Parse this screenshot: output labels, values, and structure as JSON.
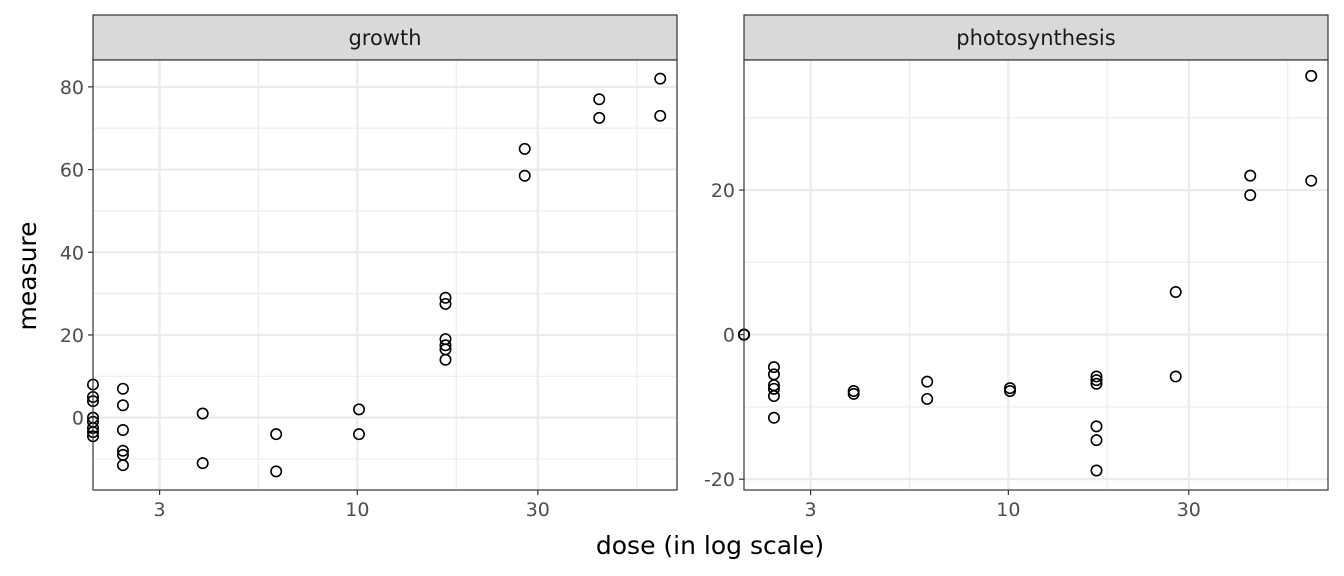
{
  "chart_data": {
    "type": "scatter",
    "xlabel": "dose (in log scale)",
    "ylabel": "measure",
    "x_scale": "log",
    "x_ticks": [
      3,
      10,
      30
    ],
    "x_tick_labels": [
      "3",
      "10",
      "30"
    ],
    "xlim": [
      2,
      70
    ],
    "facets": [
      {
        "name": "growth",
        "ylim": [
          -17.5,
          86.5
        ],
        "y_ticks": [
          0,
          20,
          40,
          60,
          80
        ],
        "y_tick_labels": [
          "0",
          "20",
          "40",
          "60",
          "80"
        ],
        "points": [
          {
            "x": 2,
            "y": 8
          },
          {
            "x": 2,
            "y": 5
          },
          {
            "x": 2,
            "y": 4
          },
          {
            "x": 2,
            "y": 0
          },
          {
            "x": 2,
            "y": -1
          },
          {
            "x": 2,
            "y": -2.5
          },
          {
            "x": 2,
            "y": -3.5
          },
          {
            "x": 2,
            "y": -4.5
          },
          {
            "x": 2.4,
            "y": 7
          },
          {
            "x": 2.4,
            "y": 3
          },
          {
            "x": 2.4,
            "y": -3
          },
          {
            "x": 2.4,
            "y": -8
          },
          {
            "x": 2.4,
            "y": -9
          },
          {
            "x": 2.4,
            "y": -11.5
          },
          {
            "x": 3.9,
            "y": 1
          },
          {
            "x": 3.9,
            "y": -11
          },
          {
            "x": 6.1,
            "y": -4
          },
          {
            "x": 6.1,
            "y": -13
          },
          {
            "x": 10.1,
            "y": 2
          },
          {
            "x": 10.1,
            "y": -4
          },
          {
            "x": 17.1,
            "y": 29
          },
          {
            "x": 17.1,
            "y": 27.5
          },
          {
            "x": 17.1,
            "y": 19
          },
          {
            "x": 17.1,
            "y": 17.5
          },
          {
            "x": 17.1,
            "y": 16.5
          },
          {
            "x": 17.1,
            "y": 14
          },
          {
            "x": 27.7,
            "y": 65
          },
          {
            "x": 27.7,
            "y": 58.5
          },
          {
            "x": 43.6,
            "y": 77
          },
          {
            "x": 43.6,
            "y": 72.5
          },
          {
            "x": 63.2,
            "y": 82
          },
          {
            "x": 63.2,
            "y": 73
          }
        ]
      },
      {
        "name": "photosynthesis",
        "ylim": [
          -21.5,
          38
        ],
        "y_ticks": [
          -20,
          0,
          20
        ],
        "y_tick_labels": [
          "-20",
          "0",
          "20"
        ],
        "points": [
          {
            "x": 2,
            "y": 0
          },
          {
            "x": 2,
            "y": 0
          },
          {
            "x": 2,
            "y": 0
          },
          {
            "x": 2,
            "y": 0
          },
          {
            "x": 2.4,
            "y": -4.5
          },
          {
            "x": 2.4,
            "y": -5.5
          },
          {
            "x": 2.4,
            "y": -7
          },
          {
            "x": 2.4,
            "y": -7.5
          },
          {
            "x": 2.4,
            "y": -8.5
          },
          {
            "x": 2.4,
            "y": -11.5
          },
          {
            "x": 3.9,
            "y": -7.8
          },
          {
            "x": 3.9,
            "y": -8.2
          },
          {
            "x": 6.1,
            "y": -6.5
          },
          {
            "x": 6.1,
            "y": -8.9
          },
          {
            "x": 10.1,
            "y": -7.4
          },
          {
            "x": 10.1,
            "y": -7.8
          },
          {
            "x": 17.1,
            "y": -5.8
          },
          {
            "x": 17.1,
            "y": -6.3
          },
          {
            "x": 17.1,
            "y": -6.8
          },
          {
            "x": 17.1,
            "y": -12.7
          },
          {
            "x": 17.1,
            "y": -14.6
          },
          {
            "x": 17.1,
            "y": -18.8
          },
          {
            "x": 27.7,
            "y": 5.9
          },
          {
            "x": 27.7,
            "y": -5.8
          },
          {
            "x": 43.6,
            "y": 22
          },
          {
            "x": 43.6,
            "y": 19.3
          },
          {
            "x": 63.2,
            "y": 35.8
          },
          {
            "x": 63.2,
            "y": 21.3
          }
        ]
      }
    ],
    "grid": true,
    "legend": "none"
  }
}
